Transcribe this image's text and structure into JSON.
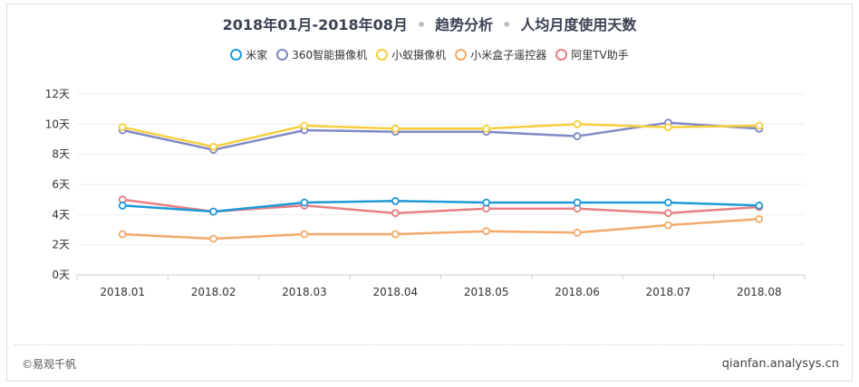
{
  "chart_data": {
    "type": "line",
    "title": {
      "period": "2018年01月-2018年08月",
      "type": "趋势分析",
      "metric": "人均月度使用天数"
    },
    "categories": [
      "2018.01",
      "2018.02",
      "2018.03",
      "2018.04",
      "2018.05",
      "2018.06",
      "2018.07",
      "2018.08"
    ],
    "y_ticks": [
      "0天",
      "2天",
      "4天",
      "6天",
      "8天",
      "10天",
      "12天"
    ],
    "ylim": [
      0,
      12
    ],
    "grid": true,
    "legend_position": "top-center",
    "series": [
      {
        "name": "米家",
        "color": "#1e9ad6",
        "values": [
          4.6,
          4.2,
          4.8,
          4.9,
          4.8,
          4.8,
          4.8,
          4.6
        ]
      },
      {
        "name": "360智能摄像机",
        "color": "#7f89c4",
        "values": [
          9.6,
          8.3,
          9.6,
          9.5,
          9.5,
          9.2,
          10.1,
          9.7
        ]
      },
      {
        "name": "小蚁摄像机",
        "color": "#f7cf3c",
        "values": [
          9.8,
          8.5,
          9.9,
          9.7,
          9.7,
          10.0,
          9.8,
          9.9
        ]
      },
      {
        "name": "小米盒子遥控器",
        "color": "#f3aa6a",
        "values": [
          2.7,
          2.4,
          2.7,
          2.7,
          2.9,
          2.8,
          3.3,
          3.7
        ]
      },
      {
        "name": "阿里TV助手",
        "color": "#e77f84",
        "values": [
          5.0,
          4.2,
          4.6,
          4.1,
          4.4,
          4.4,
          4.1,
          4.5
        ]
      }
    ]
  },
  "footer": {
    "left": "©易观千帆",
    "right": "qianfan.analysys.cn"
  }
}
